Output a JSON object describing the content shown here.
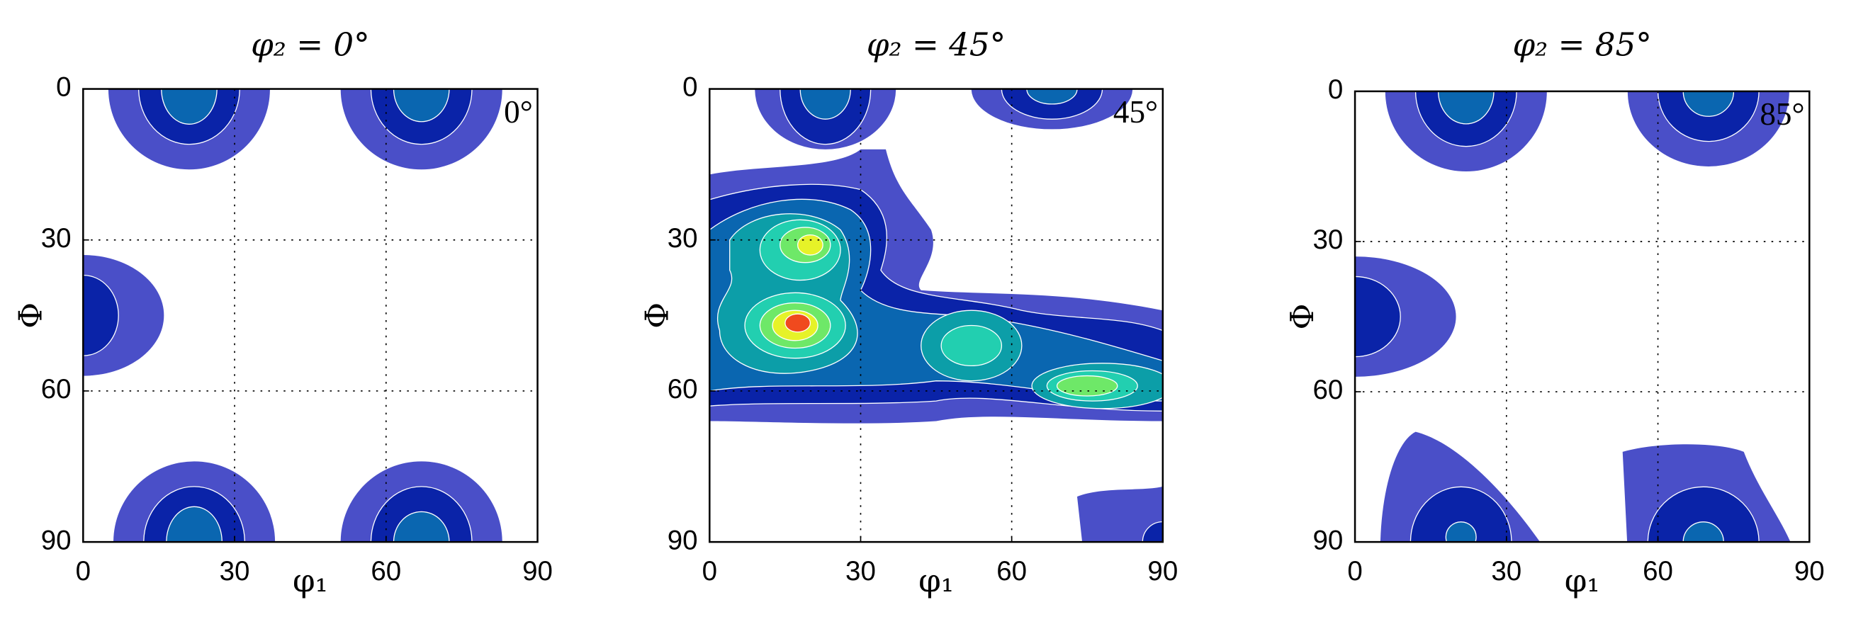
{
  "chart_data": [
    {
      "type": "contour",
      "title": "φ₂ = 0°",
      "xlabel": "φ₁",
      "ylabel": "Φ",
      "annotation": "0°",
      "xlim": [
        0,
        90
      ],
      "ylim": [
        90,
        0
      ],
      "xticks": [
        0,
        30,
        60,
        90
      ],
      "yticks": [
        0,
        30,
        60,
        90
      ],
      "grid": true
    },
    {
      "type": "contour",
      "title": "φ₂ = 45°",
      "xlabel": "φ₁",
      "ylabel": "Φ",
      "annotation": "45°",
      "xlim": [
        0,
        90
      ],
      "ylim": [
        90,
        0
      ],
      "xticks": [
        0,
        30,
        60,
        90
      ],
      "yticks": [
        0,
        30,
        60,
        90
      ],
      "grid": true
    },
    {
      "type": "contour",
      "title": "φ₂ = 85°",
      "xlabel": "φ₁",
      "ylabel": "Φ",
      "annotation": "85°",
      "xlim": [
        0,
        90
      ],
      "ylim": [
        90,
        0
      ],
      "xticks": [
        0,
        30,
        60,
        90
      ],
      "yticks": [
        0,
        30,
        60,
        90
      ],
      "grid": true
    }
  ]
}
